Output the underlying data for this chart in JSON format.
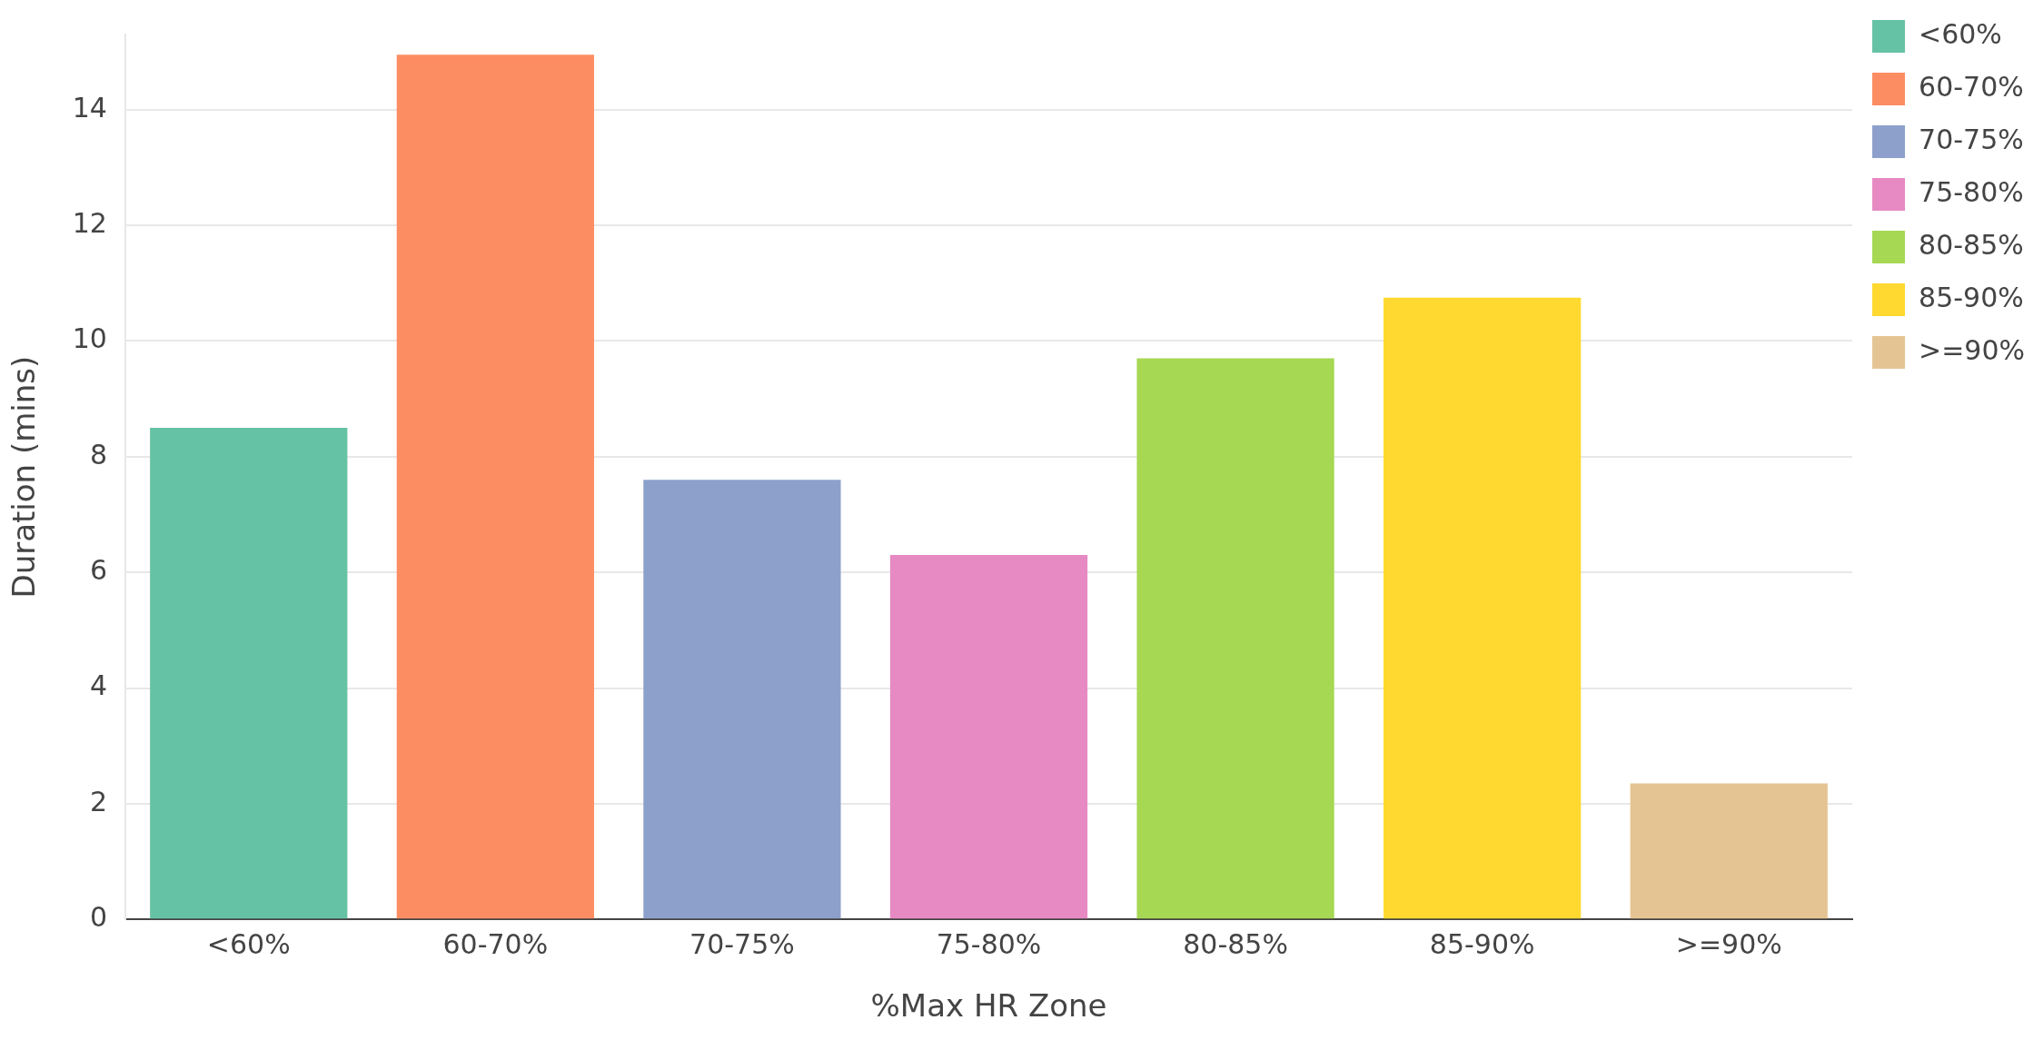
{
  "chart_data": {
    "type": "bar",
    "xlabel": "%Max HR Zone",
    "ylabel": "Duration (mins)",
    "categories": [
      "<60%",
      "60-70%",
      "70-75%",
      "75-80%",
      "80-85%",
      "85-90%",
      ">=90%"
    ],
    "series": [
      {
        "name": "<60%",
        "color": "#66c2a5",
        "values": [
          8.5,
          null,
          null,
          null,
          null,
          null,
          null
        ]
      },
      {
        "name": "60-70%",
        "color": "#fc8d62",
        "values": [
          null,
          14.95,
          null,
          null,
          null,
          null,
          null
        ]
      },
      {
        "name": "70-75%",
        "color": "#8da0cb",
        "values": [
          null,
          null,
          7.6,
          null,
          null,
          null,
          null
        ]
      },
      {
        "name": "75-80%",
        "color": "#e78ac3",
        "values": [
          null,
          null,
          null,
          6.3,
          null,
          null,
          null
        ]
      },
      {
        "name": "80-85%",
        "color": "#a6d854",
        "values": [
          null,
          null,
          null,
          null,
          9.7,
          null,
          null
        ]
      },
      {
        "name": "85-90%",
        "color": "#ffd92f",
        "values": [
          null,
          null,
          null,
          null,
          null,
          10.75,
          null
        ]
      },
      {
        "name": ">=90%",
        "color": "#e5c494",
        "values": [
          null,
          null,
          null,
          null,
          null,
          null,
          2.35
        ]
      }
    ],
    "yticks": [
      0,
      2,
      4,
      6,
      8,
      10,
      12,
      14
    ],
    "ylim": [
      0,
      15.3
    ],
    "grid": "y",
    "legend": "top right"
  }
}
